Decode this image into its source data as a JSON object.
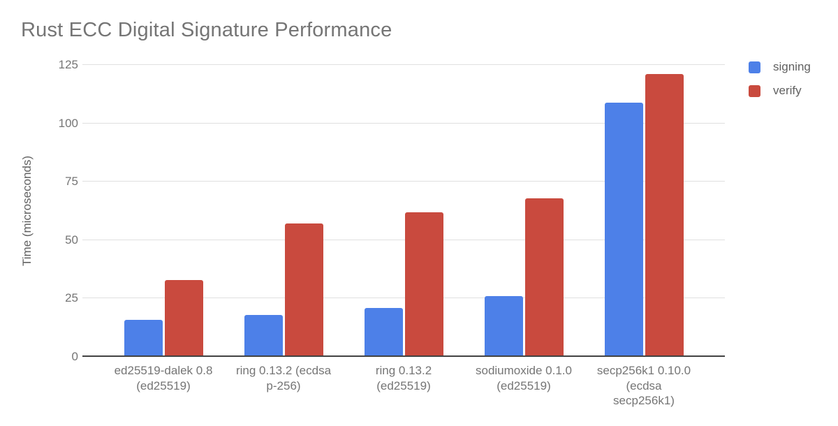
{
  "chart_data": {
    "type": "bar",
    "title": "Rust ECC Digital Signature Performance",
    "xlabel": "",
    "ylabel": "Time (microseconds)",
    "categories": [
      "ed25519-dalek 0.8\n(ed25519)",
      "ring 0.13.2 (ecdsa\np-256)",
      "ring 0.13.2\n(ed25519)",
      "sodiumoxide 0.1.0\n(ed25519)",
      "secp256k1 0.10.0\n(ecdsa\nsecp256k1)"
    ],
    "series": [
      {
        "name": "signing",
        "color": "#4d80e8",
        "values": [
          16,
          18,
          21,
          26,
          109
        ]
      },
      {
        "name": "verify",
        "color": "#c94a3e",
        "values": [
          33,
          57,
          62,
          68,
          121
        ]
      }
    ],
    "y_ticks": [
      0,
      25,
      50,
      75,
      100,
      125
    ],
    "ylim": [
      0,
      125
    ],
    "grid": true,
    "legend_position": "right",
    "colors": {
      "title_text": "#757575",
      "axis_text": "#757575",
      "axis_title_text": "#616161",
      "gridline": "#e0e0e0",
      "baseline": "#424242"
    }
  }
}
